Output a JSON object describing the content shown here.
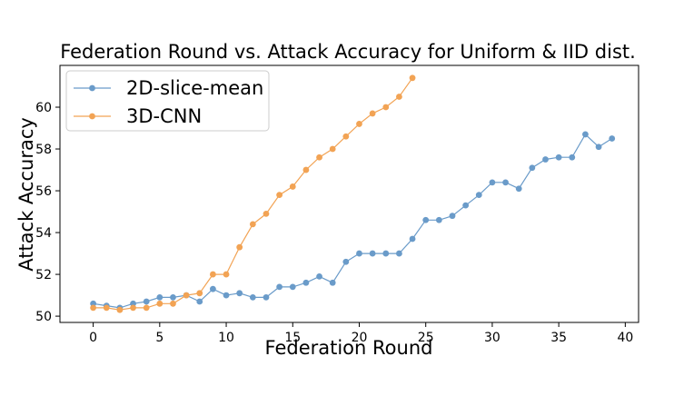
{
  "chart_data": {
    "type": "line",
    "title": "Federation Round vs. Attack Accuracy for Uniform & IID dist.",
    "xlabel": "Federation Round",
    "ylabel": "Attack Accuracy",
    "xlim": [
      -2.5,
      41
    ],
    "ylim": [
      49.7,
      62.0
    ],
    "xticks": [
      0,
      5,
      10,
      15,
      20,
      25,
      30,
      35,
      40
    ],
    "yticks": [
      50,
      52,
      54,
      56,
      58,
      60
    ],
    "grid": false,
    "legend_placement": "top-left",
    "series": [
      {
        "name": "2D-slice-mean",
        "color": "#6a9bc9",
        "x": [
          0,
          1,
          2,
          3,
          4,
          5,
          6,
          7,
          8,
          9,
          10,
          11,
          12,
          13,
          14,
          15,
          16,
          17,
          18,
          19,
          20,
          21,
          22,
          23,
          24,
          25,
          26,
          27,
          28,
          29,
          30,
          31,
          32,
          33,
          34,
          35,
          36,
          37,
          38,
          39
        ],
        "values": [
          50.6,
          50.5,
          50.4,
          50.6,
          50.7,
          50.9,
          50.9,
          51.0,
          50.7,
          51.3,
          51.0,
          51.1,
          50.9,
          50.9,
          51.4,
          51.4,
          51.6,
          51.9,
          51.6,
          52.6,
          53.0,
          53.0,
          53.0,
          53.0,
          53.7,
          54.6,
          54.6,
          54.8,
          55.3,
          55.8,
          56.4,
          56.4,
          56.1,
          57.1,
          57.5,
          57.6,
          57.6,
          58.7,
          58.1,
          58.5
        ]
      },
      {
        "name": "3D-CNN",
        "color": "#f2a354",
        "x": [
          0,
          1,
          2,
          3,
          4,
          5,
          6,
          7,
          8,
          9,
          10,
          11,
          12,
          13,
          14,
          15,
          16,
          17,
          18,
          19,
          20,
          21,
          22,
          23,
          24
        ],
        "values": [
          50.4,
          50.4,
          50.3,
          50.4,
          50.4,
          50.6,
          50.6,
          51.0,
          51.1,
          52.0,
          52.0,
          53.3,
          54.4,
          54.9,
          55.8,
          56.2,
          57.0,
          57.6,
          58.0,
          58.6,
          59.2,
          59.7,
          60.0,
          60.5,
          61.4
        ]
      }
    ]
  }
}
